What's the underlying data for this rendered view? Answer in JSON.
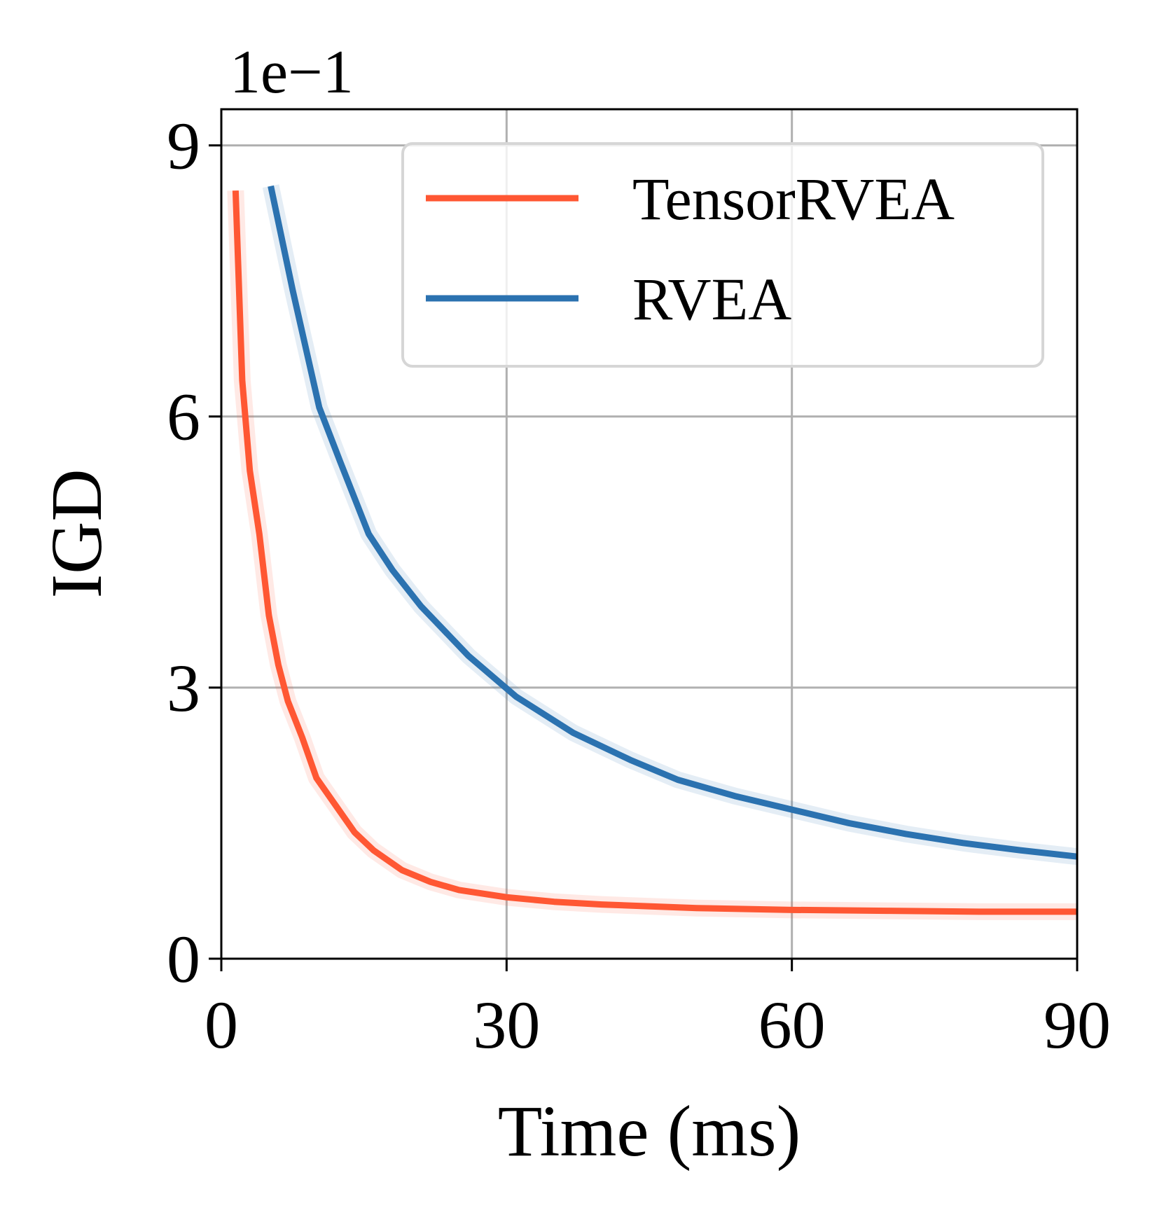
{
  "chart_data": {
    "type": "line",
    "xlabel": "Time (ms)",
    "ylabel": "IGD",
    "y_multiplier": "1e−1",
    "xlim": [
      0,
      90
    ],
    "ylim": [
      0,
      9.4
    ],
    "xticks": [
      0,
      30,
      60,
      90
    ],
    "yticks": [
      0,
      3,
      6,
      9
    ],
    "xtick_labels": [
      "0",
      "30",
      "60",
      "90"
    ],
    "ytick_labels": [
      "0",
      "3",
      "6",
      "9"
    ],
    "grid": true,
    "legend_position": "upper-right",
    "series": [
      {
        "name": "TensorRVEA",
        "color": "#ff5733",
        "x": [
          1.5,
          2.2,
          3,
          4,
          5,
          6,
          7,
          8.5,
          10,
          12,
          14,
          16,
          19,
          22,
          25,
          30,
          35,
          40,
          50,
          60,
          70,
          80,
          90
        ],
        "y": [
          8.5,
          6.4,
          5.4,
          4.7,
          3.8,
          3.25,
          2.85,
          2.45,
          2.0,
          1.7,
          1.4,
          1.2,
          0.98,
          0.85,
          0.76,
          0.68,
          0.63,
          0.6,
          0.56,
          0.54,
          0.53,
          0.52,
          0.52
        ]
      },
      {
        "name": "RVEA",
        "color": "#2b72b0",
        "x": [
          5.2,
          7.5,
          10.3,
          12.5,
          15.5,
          18,
          21,
          26,
          31,
          37,
          43,
          48,
          54,
          60,
          66,
          72,
          78,
          84,
          90
        ],
        "y": [
          8.55,
          7.4,
          6.1,
          5.5,
          4.7,
          4.3,
          3.9,
          3.35,
          2.9,
          2.5,
          2.2,
          1.98,
          1.8,
          1.65,
          1.5,
          1.38,
          1.28,
          1.2,
          1.13
        ]
      }
    ]
  }
}
